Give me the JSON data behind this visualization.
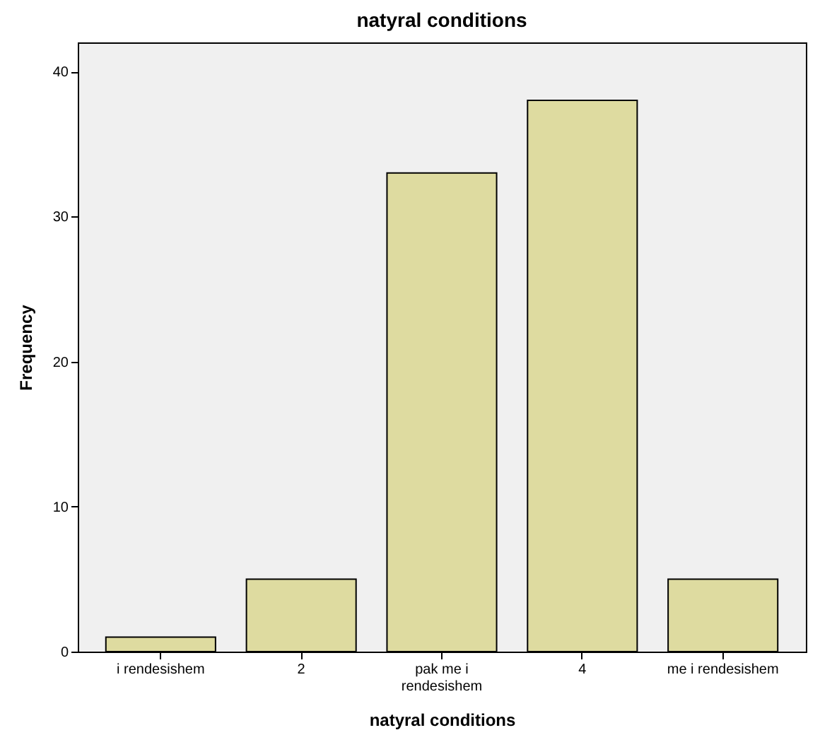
{
  "chart_data": {
    "type": "bar",
    "title": "natyral conditions",
    "xlabel": "natyral conditions",
    "ylabel": "Frequency",
    "categories": [
      "i rendesishem",
      "2",
      "pak me i rendesishem",
      "4",
      "me i rendesishem"
    ],
    "values": [
      1,
      5,
      33,
      38,
      5
    ],
    "color": "#dedba0",
    "ylim": [
      0,
      42
    ],
    "yticks": [
      0,
      10,
      20,
      30,
      40
    ],
    "grid": false
  }
}
